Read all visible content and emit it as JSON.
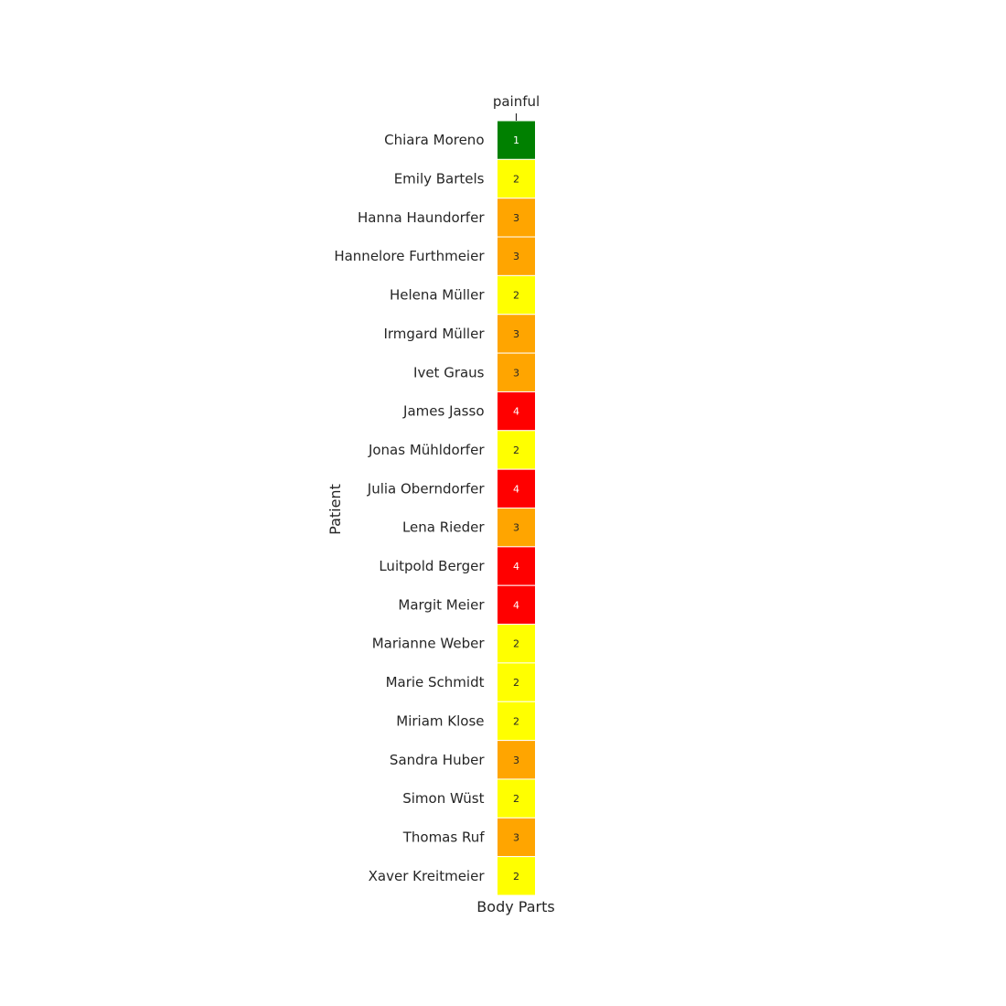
{
  "chart_data": {
    "type": "heatmap",
    "title": "",
    "xlabel": "Body Parts",
    "ylabel": "Patient",
    "columns": [
      "painful"
    ],
    "rows": [
      "Chiara Moreno",
      "Emily Bartels",
      "Hanna Haundorfer",
      "Hannelore Furthmeier",
      "Helena Müller",
      "Irmgard Müller",
      "Ivet Graus",
      "James Jasso",
      "Jonas Mühldorfer",
      "Julia Oberndorfer",
      "Lena Rieder",
      "Luitpold Berger",
      "Margit Meier",
      "Marianne Weber",
      "Marie Schmidt",
      "Miriam Klose",
      "Sandra Huber",
      "Simon Wüst",
      "Thomas Ruf",
      "Xaver Kreitmeier"
    ],
    "values": [
      [
        1
      ],
      [
        2
      ],
      [
        3
      ],
      [
        3
      ],
      [
        2
      ],
      [
        3
      ],
      [
        3
      ],
      [
        4
      ],
      [
        2
      ],
      [
        4
      ],
      [
        3
      ],
      [
        4
      ],
      [
        4
      ],
      [
        2
      ],
      [
        2
      ],
      [
        2
      ],
      [
        3
      ],
      [
        2
      ],
      [
        3
      ],
      [
        2
      ]
    ],
    "color_scale": {
      "1": "#008000",
      "2": "#ffff00",
      "3": "#ffa500",
      "4": "#ff0000"
    },
    "annotation_colors": {
      "1": "#ffffff",
      "2": "#262626",
      "3": "#262626",
      "4": "#ffffff"
    },
    "x_ticks_position": "top",
    "xlabel_position": "bottom",
    "grid": false,
    "legend": "none"
  }
}
